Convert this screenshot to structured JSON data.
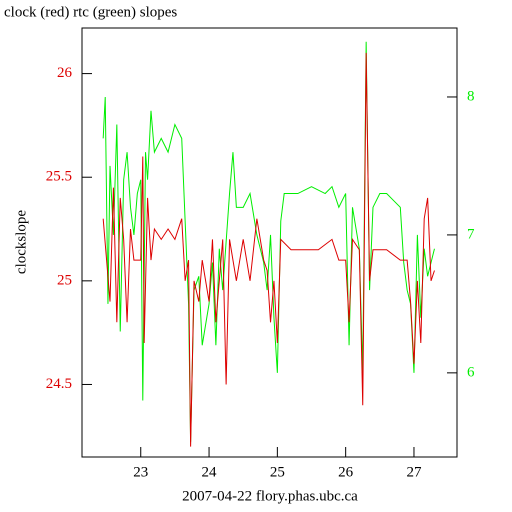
{
  "chart_data": {
    "type": "line",
    "title": "clock (red) rtc (green) slopes",
    "y_label": "clockslope",
    "x_label": "2007-04-22 flory.phas.ubc.ca",
    "xlim": [
      22.14,
      27.63
    ],
    "xticks": [
      23,
      24,
      25,
      26,
      27
    ],
    "ylim": [
      24.15,
      26.22
    ],
    "yticks": [
      24.5,
      25,
      25.5,
      26
    ],
    "y2lim": [
      5.39,
      8.5
    ],
    "y2ticks": [
      6,
      7,
      8
    ],
    "series": [
      {
        "name": "clock",
        "color": "#dd0000",
        "axis": "y",
        "x": [
          22.45,
          22.5,
          22.55,
          22.6,
          22.65,
          22.7,
          22.75,
          22.8,
          22.85,
          22.9,
          22.95,
          23.0,
          23.03,
          23.05,
          23.1,
          23.15,
          23.2,
          23.3,
          23.4,
          23.5,
          23.6,
          23.65,
          23.7,
          23.73,
          23.78,
          23.85,
          23.9,
          24.0,
          24.05,
          24.1,
          24.15,
          24.2,
          24.25,
          24.3,
          24.4,
          24.5,
          24.6,
          24.7,
          24.8,
          24.85,
          24.9,
          24.95,
          25.0,
          25.05,
          25.2,
          25.4,
          25.6,
          25.8,
          25.9,
          26.0,
          26.05,
          26.1,
          26.2,
          26.25,
          26.3,
          26.35,
          26.4,
          26.6,
          26.8,
          26.9,
          26.95,
          27.0,
          27.05,
          27.1,
          27.15,
          27.2,
          27.25,
          27.3
        ],
        "values": [
          25.3,
          25.1,
          24.9,
          25.45,
          24.8,
          25.4,
          25.2,
          24.8,
          25.25,
          25.1,
          25.1,
          25.1,
          25.6,
          24.7,
          25.4,
          25.1,
          25.25,
          25.2,
          25.25,
          25.2,
          25.3,
          25.0,
          25.1,
          24.2,
          25.0,
          24.9,
          25.1,
          24.9,
          25.2,
          24.8,
          25.0,
          25.2,
          24.5,
          25.2,
          25.0,
          25.2,
          25.0,
          25.3,
          25.1,
          25.05,
          24.8,
          25.0,
          24.7,
          25.2,
          25.15,
          25.15,
          25.15,
          25.2,
          25.1,
          25.1,
          24.8,
          25.2,
          25.15,
          24.4,
          26.1,
          25.0,
          25.15,
          25.15,
          25.1,
          25.1,
          24.9,
          24.6,
          25.0,
          24.7,
          25.3,
          25.4,
          25.0,
          25.05
        ]
      },
      {
        "name": "rtc",
        "color": "#00ee00",
        "axis": "y2",
        "x": [
          22.45,
          22.48,
          22.52,
          22.55,
          22.6,
          22.65,
          22.7,
          22.75,
          22.8,
          22.85,
          22.9,
          22.95,
          23.0,
          23.03,
          23.07,
          23.1,
          23.15,
          23.2,
          23.3,
          23.4,
          23.5,
          23.6,
          23.65,
          23.7,
          23.73,
          23.78,
          23.85,
          23.9,
          24.0,
          24.05,
          24.1,
          24.15,
          24.2,
          24.3,
          24.35,
          24.4,
          24.5,
          24.6,
          24.7,
          24.8,
          24.85,
          24.9,
          24.95,
          25.0,
          25.05,
          25.1,
          25.3,
          25.5,
          25.7,
          25.8,
          25.9,
          26.0,
          26.05,
          26.1,
          26.2,
          26.25,
          26.3,
          26.35,
          26.4,
          26.5,
          26.6,
          26.7,
          26.8,
          26.85,
          26.9,
          26.95,
          27.0,
          27.05,
          27.1,
          27.15,
          27.2,
          27.25,
          27.3
        ],
        "values": [
          7.7,
          8.0,
          6.5,
          7.5,
          7.0,
          7.8,
          6.3,
          7.4,
          7.6,
          7.2,
          7.0,
          7.3,
          7.4,
          5.8,
          7.6,
          7.4,
          7.9,
          7.6,
          7.7,
          7.6,
          7.8,
          7.7,
          7.1,
          6.5,
          5.5,
          6.6,
          6.7,
          6.2,
          6.5,
          6.8,
          6.2,
          6.9,
          6.6,
          7.3,
          7.6,
          7.2,
          7.2,
          7.3,
          7.0,
          6.8,
          6.6,
          7.0,
          6.4,
          6.0,
          7.1,
          7.3,
          7.3,
          7.35,
          7.3,
          7.35,
          7.2,
          7.3,
          6.2,
          7.2,
          6.9,
          6.0,
          8.4,
          6.6,
          7.2,
          7.3,
          7.3,
          7.25,
          7.2,
          6.8,
          6.6,
          6.5,
          6.0,
          7.0,
          6.4,
          6.9,
          6.7,
          6.8,
          6.9
        ]
      }
    ]
  }
}
